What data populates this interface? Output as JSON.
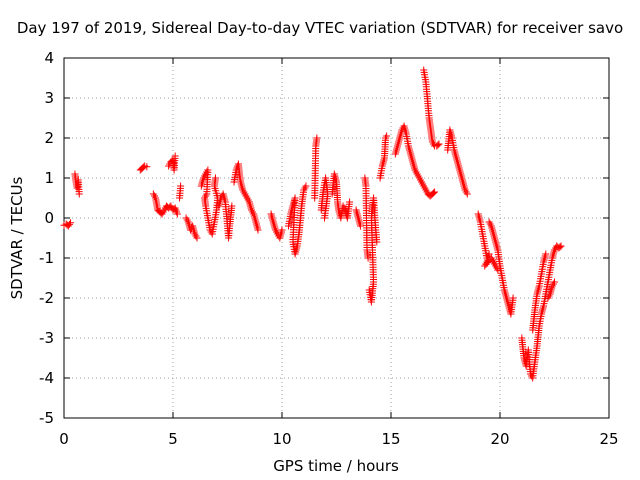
{
  "chart_data": {
    "type": "scatter",
    "title": "Day 197 of 2019, Sidereal Day-to-day VTEC variation (SDTVAR) for receiver savo",
    "xlabel": "GPS time / hours",
    "ylabel": "SDTVAR / TECUs",
    "xlim": [
      0,
      25
    ],
    "ylim": [
      -5,
      4
    ],
    "xticks": [
      "0",
      "5",
      "10",
      "15",
      "20",
      "25"
    ],
    "yticks": [
      "-5",
      "-4",
      "-3",
      "-2",
      "-1",
      "0",
      "1",
      "2",
      "3",
      "4"
    ],
    "grid": true,
    "marker": "+",
    "color": "#ff0000",
    "series": [
      {
        "name": "SDTVAR",
        "segments": [
          [
            [
              0.0,
              -0.18
            ],
            [
              0.1,
              -0.15
            ],
            [
              0.2,
              -0.2
            ],
            [
              0.3,
              -0.12
            ]
          ],
          [
            [
              0.5,
              1.1
            ],
            [
              0.55,
              0.9
            ],
            [
              0.6,
              0.75
            ],
            [
              0.65,
              0.95
            ],
            [
              0.7,
              0.6
            ]
          ],
          [
            [
              3.5,
              1.2
            ],
            [
              3.6,
              1.25
            ],
            [
              3.7,
              1.3
            ],
            [
              3.8,
              1.28
            ]
          ],
          [
            [
              4.1,
              0.6
            ],
            [
              4.2,
              0.5
            ],
            [
              4.25,
              0.35
            ],
            [
              4.3,
              0.2
            ],
            [
              4.4,
              0.15
            ],
            [
              4.5,
              0.1
            ],
            [
              4.6,
              0.2
            ],
            [
              4.7,
              0.3
            ],
            [
              4.8,
              0.25
            ],
            [
              4.9,
              0.3
            ],
            [
              5.0,
              0.2
            ],
            [
              5.1,
              0.25
            ],
            [
              5.2,
              0.1
            ]
          ],
          [
            [
              4.8,
              1.3
            ],
            [
              4.9,
              1.4
            ],
            [
              5.0,
              1.45
            ],
            [
              5.05,
              1.2
            ],
            [
              5.1,
              1.55
            ]
          ],
          [
            [
              5.3,
              0.5
            ],
            [
              5.35,
              0.8
            ]
          ],
          [
            [
              5.6,
              0.0
            ],
            [
              5.7,
              -0.1
            ],
            [
              5.8,
              -0.3
            ],
            [
              5.9,
              -0.2
            ],
            [
              6.0,
              -0.4
            ],
            [
              6.1,
              -0.5
            ]
          ],
          [
            [
              6.3,
              0.8
            ],
            [
              6.4,
              1.0
            ],
            [
              6.5,
              1.1
            ],
            [
              6.6,
              1.2
            ],
            [
              6.55,
              0.6
            ],
            [
              6.45,
              0.5
            ],
            [
              6.5,
              0.3
            ],
            [
              6.6,
              0.0
            ],
            [
              6.7,
              -0.3
            ],
            [
              6.8,
              -0.4
            ],
            [
              6.9,
              -0.1
            ],
            [
              7.0,
              0.2
            ],
            [
              7.05,
              0.5
            ],
            [
              6.9,
              0.8
            ],
            [
              6.95,
              1.0
            ]
          ],
          [
            [
              7.1,
              0.3
            ],
            [
              7.2,
              0.5
            ],
            [
              7.3,
              0.6
            ],
            [
              7.4,
              0.4
            ],
            [
              7.45,
              0.1
            ],
            [
              7.5,
              -0.2
            ],
            [
              7.55,
              -0.5
            ],
            [
              7.6,
              -0.2
            ],
            [
              7.7,
              0.3
            ]
          ],
          [
            [
              7.8,
              0.9
            ],
            [
              7.9,
              1.2
            ],
            [
              8.0,
              1.35
            ],
            [
              8.05,
              1.1
            ],
            [
              8.1,
              0.9
            ],
            [
              8.2,
              0.7
            ],
            [
              8.3,
              0.6
            ],
            [
              8.4,
              0.5
            ],
            [
              8.5,
              0.4
            ],
            [
              8.6,
              0.2
            ],
            [
              8.7,
              0.1
            ],
            [
              8.8,
              -0.1
            ],
            [
              8.9,
              -0.3
            ]
          ],
          [
            [
              9.5,
              0.1
            ],
            [
              9.6,
              -0.1
            ],
            [
              9.7,
              -0.3
            ],
            [
              9.8,
              -0.4
            ],
            [
              9.9,
              -0.5
            ],
            [
              10.0,
              -0.3
            ]
          ],
          [
            [
              10.3,
              -0.2
            ],
            [
              10.4,
              0.1
            ],
            [
              10.5,
              0.3
            ],
            [
              10.6,
              0.5
            ],
            [
              10.5,
              -0.6
            ],
            [
              10.6,
              -0.9
            ],
            [
              10.7,
              -0.7
            ],
            [
              10.8,
              -0.3
            ],
            [
              10.9,
              0.3
            ],
            [
              11.0,
              0.7
            ],
            [
              11.1,
              0.8
            ]
          ],
          [
            [
              11.5,
              0.5
            ],
            [
              11.55,
              1.8
            ],
            [
              11.6,
              2.0
            ]
          ],
          [
            [
              11.8,
              0.2
            ],
            [
              11.9,
              0.7
            ],
            [
              12.0,
              1.0
            ],
            [
              12.1,
              0.6
            ],
            [
              11.95,
              0.0
            ]
          ],
          [
            [
              12.3,
              0.6
            ],
            [
              12.4,
              1.1
            ],
            [
              12.5,
              0.9
            ],
            [
              12.55,
              0.4
            ],
            [
              12.6,
              0.2
            ],
            [
              12.7,
              0.0
            ],
            [
              12.8,
              0.3
            ],
            [
              12.9,
              0.2
            ],
            [
              13.0,
              0.0
            ],
            [
              13.1,
              0.4
            ]
          ],
          [
            [
              13.4,
              0.2
            ],
            [
              13.5,
              0.0
            ],
            [
              13.6,
              -0.2
            ]
          ],
          [
            [
              13.8,
              1.0
            ],
            [
              13.85,
              0.8
            ],
            [
              13.9,
              -0.8
            ],
            [
              13.95,
              -1.0
            ]
          ],
          [
            [
              14.0,
              -1.8
            ],
            [
              14.1,
              -2.1
            ],
            [
              14.2,
              -1.6
            ],
            [
              14.1,
              0.0
            ],
            [
              14.2,
              0.5
            ],
            [
              14.3,
              -0.3
            ],
            [
              14.35,
              -0.6
            ]
          ],
          [
            [
              14.5,
              1.0
            ],
            [
              14.6,
              1.3
            ],
            [
              14.7,
              1.5
            ],
            [
              14.75,
              2.0
            ],
            [
              14.8,
              2.05
            ]
          ],
          [
            [
              15.2,
              1.6
            ],
            [
              15.3,
              1.8
            ],
            [
              15.4,
              2.0
            ],
            [
              15.5,
              2.2
            ],
            [
              15.6,
              2.3
            ],
            [
              15.7,
              2.1
            ],
            [
              15.8,
              1.8
            ],
            [
              15.9,
              1.6
            ],
            [
              16.0,
              1.4
            ],
            [
              16.1,
              1.2
            ],
            [
              16.2,
              1.1
            ],
            [
              16.3,
              1.0
            ],
            [
              16.4,
              0.9
            ],
            [
              16.5,
              0.8
            ],
            [
              16.6,
              0.7
            ],
            [
              16.7,
              0.6
            ],
            [
              16.8,
              0.55
            ],
            [
              16.9,
              0.6
            ],
            [
              17.0,
              0.65
            ]
          ],
          [
            [
              16.5,
              3.7
            ],
            [
              16.6,
              3.4
            ],
            [
              16.65,
              3.1
            ],
            [
              16.7,
              2.8
            ],
            [
              16.75,
              2.5
            ],
            [
              16.8,
              2.3
            ],
            [
              16.85,
              2.1
            ],
            [
              16.9,
              1.9
            ],
            [
              17.0,
              1.8
            ],
            [
              17.1,
              1.8
            ],
            [
              17.2,
              1.85
            ]
          ],
          [
            [
              17.6,
              1.7
            ],
            [
              17.7,
              2.2
            ],
            [
              17.8,
              2.0
            ],
            [
              17.9,
              1.7
            ],
            [
              18.0,
              1.5
            ],
            [
              18.1,
              1.3
            ],
            [
              18.2,
              1.1
            ],
            [
              18.3,
              0.9
            ],
            [
              18.4,
              0.7
            ],
            [
              18.5,
              0.6
            ]
          ],
          [
            [
              19.0,
              0.1
            ],
            [
              19.1,
              -0.1
            ],
            [
              19.2,
              -0.4
            ],
            [
              19.3,
              -0.7
            ],
            [
              19.4,
              -1.0
            ],
            [
              19.5,
              -0.9
            ],
            [
              19.4,
              -1.1
            ],
            [
              19.3,
              -1.2
            ],
            [
              19.6,
              -1.0
            ],
            [
              19.7,
              -1.1
            ],
            [
              19.8,
              -1.2
            ],
            [
              19.9,
              -1.3
            ]
          ],
          [
            [
              19.5,
              -0.1
            ],
            [
              19.6,
              -0.2
            ],
            [
              19.7,
              -0.4
            ],
            [
              19.8,
              -0.6
            ],
            [
              19.9,
              -0.8
            ],
            [
              20.0,
              -1.2
            ],
            [
              20.1,
              -1.5
            ],
            [
              20.2,
              -1.8
            ],
            [
              20.3,
              -2.0
            ],
            [
              20.4,
              -2.2
            ],
            [
              20.5,
              -2.4
            ],
            [
              20.6,
              -2.0
            ]
          ],
          [
            [
              21.0,
              -3.0
            ],
            [
              21.1,
              -3.5
            ],
            [
              21.2,
              -3.7
            ],
            [
              21.3,
              -3.3
            ],
            [
              21.4,
              -3.9
            ],
            [
              21.5,
              -4.0
            ],
            [
              21.6,
              -3.6
            ],
            [
              21.7,
              -3.2
            ],
            [
              21.8,
              -2.7
            ],
            [
              21.9,
              -2.4
            ],
            [
              22.0,
              -2.2
            ],
            [
              22.1,
              -1.9
            ],
            [
              22.2,
              -1.6
            ],
            [
              22.3,
              -1.3
            ],
            [
              22.4,
              -1.0
            ],
            [
              22.5,
              -0.8
            ],
            [
              22.6,
              -0.7
            ],
            [
              22.7,
              -0.75
            ],
            [
              22.8,
              -0.7
            ]
          ],
          [
            [
              21.5,
              -2.8
            ],
            [
              21.6,
              -2.3
            ],
            [
              21.7,
              -1.9
            ],
            [
              21.8,
              -1.7
            ],
            [
              21.9,
              -1.4
            ],
            [
              22.0,
              -1.1
            ],
            [
              22.1,
              -0.9
            ]
          ],
          [
            [
              22.2,
              -2.0
            ],
            [
              22.3,
              -1.9
            ],
            [
              22.4,
              -1.7
            ],
            [
              22.5,
              -1.6
            ]
          ]
        ]
      }
    ]
  }
}
